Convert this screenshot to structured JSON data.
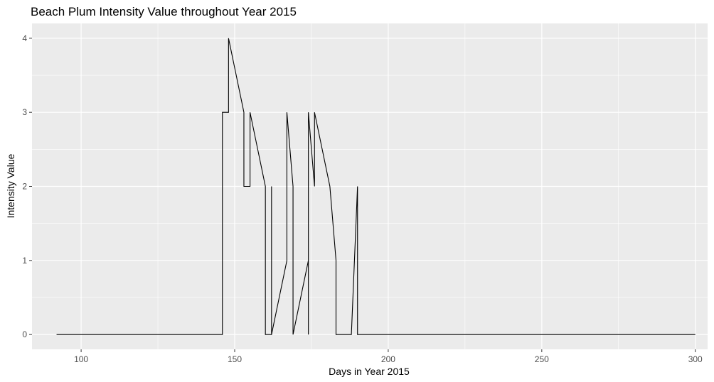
{
  "chart_data": {
    "type": "line",
    "title": "Beach Plum Intensity Value throughout Year 2015",
    "xlabel": "Days in Year 2015",
    "ylabel": "Intensity Value",
    "xlim": [
      84,
      304
    ],
    "ylim": [
      -0.2,
      4.2
    ],
    "x_ticks": [
      100,
      150,
      200,
      250,
      300
    ],
    "y_ticks": [
      0,
      1,
      2,
      3,
      4
    ],
    "grid": true,
    "panel_background": "#ebebeb",
    "grid_color": "#ffffff",
    "line_color": "#000000",
    "series": [
      {
        "x": [
          92,
          146,
          146,
          148,
          148,
          153,
          153,
          155,
          155,
          160,
          160,
          162,
          162,
          162,
          167,
          167,
          169,
          169,
          174,
          174,
          174,
          174,
          176,
          176,
          181,
          183,
          183,
          188,
          190,
          190,
          300
        ],
        "y": [
          0,
          0,
          3,
          3,
          4,
          3,
          2,
          2,
          3,
          2,
          0,
          0,
          2,
          0,
          1,
          3,
          2,
          0,
          1,
          0,
          3,
          3,
          2,
          3,
          2,
          1,
          0,
          0,
          2,
          0,
          0
        ]
      }
    ]
  }
}
